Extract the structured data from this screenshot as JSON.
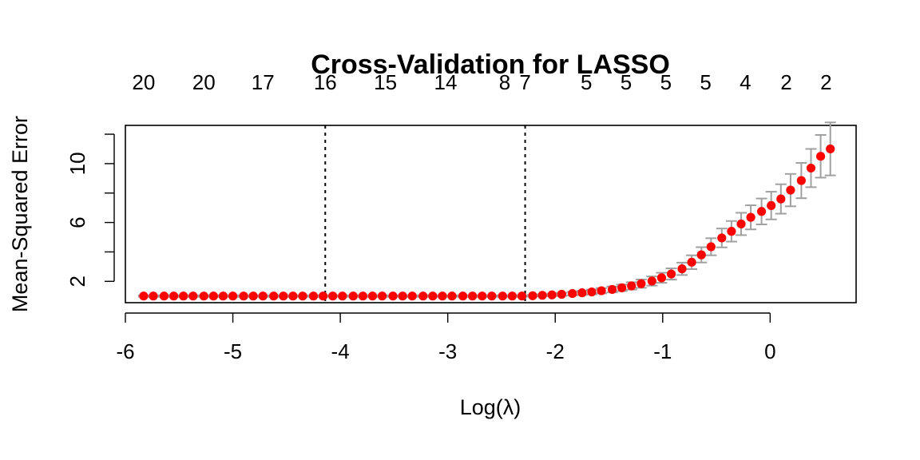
{
  "chart_data": {
    "type": "scatter",
    "title": "Cross-Validation for LASSO",
    "xlabel": "Log(λ)",
    "ylabel": "Mean-Squared Error",
    "xlim": [
      -6.0,
      0.8
    ],
    "ylim": [
      0.55,
      12.6
    ],
    "x_ticks": [
      -6,
      -5,
      -4,
      -3,
      -2,
      -1,
      0
    ],
    "y_ticks": [
      2,
      4,
      6,
      8,
      10,
      12
    ],
    "y_tick_labels": [
      "2",
      "6",
      "10"
    ],
    "grid": false,
    "legend": "none",
    "point_color": "#ff0000",
    "errorbar_color": "#a0a0a0",
    "vlines": [
      -4.14,
      -2.28
    ],
    "top_axis": {
      "x": [
        -5.83,
        -5.27,
        -4.72,
        -4.14,
        -3.58,
        -3.02,
        -2.47,
        -2.28,
        -1.71,
        -1.34,
        -0.97,
        -0.6,
        -0.23,
        0.15,
        0.52
      ],
      "labels": [
        "20",
        "20",
        "17",
        "16",
        "15",
        "14",
        "8",
        "7",
        "5",
        "5",
        "5",
        "5",
        "4",
        "2",
        "2"
      ]
    },
    "series": [
      {
        "x": [
          -5.83,
          -5.74,
          -5.64,
          -5.55,
          -5.46,
          -5.37,
          -5.27,
          -5.18,
          -5.09,
          -5.0,
          -4.9,
          -4.81,
          -4.72,
          -4.62,
          -4.53,
          -4.44,
          -4.35,
          -4.25,
          -4.16,
          -4.07,
          -3.98,
          -3.88,
          -3.79,
          -3.7,
          -3.61,
          -3.51,
          -3.42,
          -3.33,
          -3.23,
          -3.14,
          -3.05,
          -2.96,
          -2.86,
          -2.77,
          -2.68,
          -2.59,
          -2.49,
          -2.4,
          -2.31,
          -2.21,
          -2.12,
          -2.03,
          -1.94,
          -1.84,
          -1.75,
          -1.66,
          -1.57,
          -1.47,
          -1.38,
          -1.29,
          -1.2,
          -1.1,
          -1.01,
          -0.92,
          -0.82,
          -0.73,
          -0.64,
          -0.55,
          -0.45,
          -0.36,
          -0.27,
          -0.18,
          -0.08,
          0.01,
          0.1,
          0.19,
          0.29,
          0.38,
          0.47,
          0.56
        ],
        "y": [
          1.0,
          1.0,
          1.0,
          1.0,
          1.0,
          1.0,
          1.0,
          1.0,
          1.0,
          1.0,
          1.0,
          1.0,
          1.0,
          1.0,
          1.0,
          1.0,
          1.0,
          1.0,
          1.0,
          1.0,
          1.0,
          1.0,
          1.0,
          1.0,
          1.0,
          1.0,
          1.0,
          1.0,
          1.0,
          1.0,
          1.0,
          1.0,
          1.0,
          1.0,
          1.0,
          1.0,
          1.0,
          1.0,
          1.0,
          1.02,
          1.05,
          1.08,
          1.12,
          1.17,
          1.22,
          1.28,
          1.36,
          1.45,
          1.56,
          1.69,
          1.84,
          2.02,
          2.24,
          2.5,
          2.85,
          3.3,
          3.8,
          4.35,
          4.95,
          5.4,
          5.9,
          6.35,
          6.75,
          7.15,
          7.6,
          8.2,
          8.85,
          9.7,
          10.5,
          11.0
        ],
        "err": [
          0.05,
          0.05,
          0.05,
          0.05,
          0.05,
          0.05,
          0.05,
          0.05,
          0.05,
          0.05,
          0.05,
          0.05,
          0.05,
          0.05,
          0.05,
          0.05,
          0.05,
          0.05,
          0.05,
          0.05,
          0.05,
          0.05,
          0.05,
          0.05,
          0.05,
          0.05,
          0.05,
          0.05,
          0.05,
          0.05,
          0.05,
          0.05,
          0.05,
          0.05,
          0.05,
          0.05,
          0.05,
          0.05,
          0.05,
          0.06,
          0.07,
          0.08,
          0.1,
          0.12,
          0.14,
          0.16,
          0.18,
          0.2,
          0.22,
          0.25,
          0.28,
          0.31,
          0.34,
          0.38,
          0.42,
          0.47,
          0.52,
          0.58,
          0.64,
          0.7,
          0.76,
          0.82,
          0.88,
          0.94,
          1.0,
          1.1,
          1.2,
          1.3,
          1.45,
          1.8
        ]
      }
    ]
  }
}
